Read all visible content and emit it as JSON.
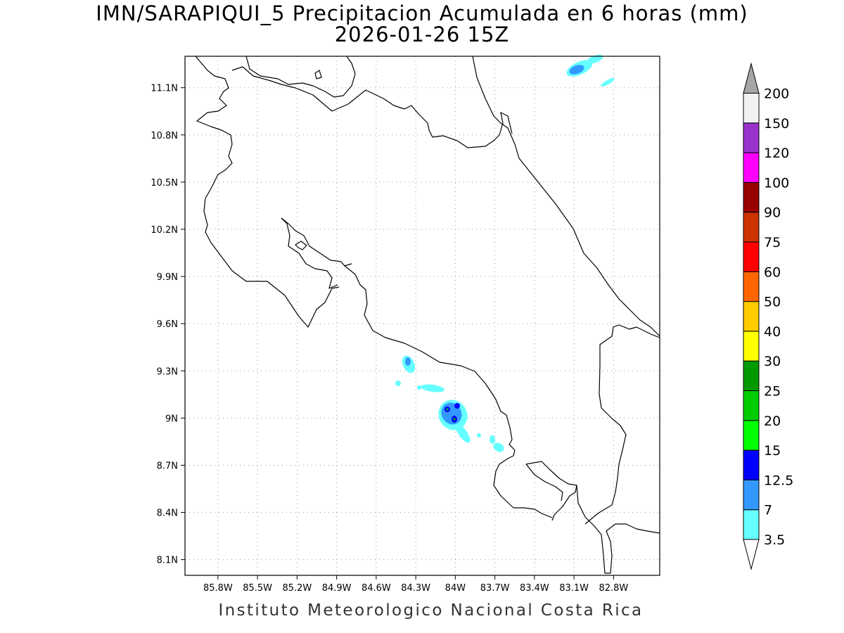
{
  "title_line1": "IMN/SARAPIQUI_5 Precipitacion Acumulada en 6 horas (mm)",
  "title_line2": "2026-01-26 15Z",
  "footer": "Instituto Meteorologico Nacional Costa Rica",
  "map": {
    "lon_range": [
      -86.05,
      -82.45
    ],
    "lat_range": [
      8.0,
      11.3
    ],
    "grid_lines": "dotted",
    "lon_ticks": [
      {
        "value": -85.8,
        "label": "85.8W"
      },
      {
        "value": -85.5,
        "label": "85.5W"
      },
      {
        "value": -85.2,
        "label": "85.2W"
      },
      {
        "value": -84.9,
        "label": "84.9W"
      },
      {
        "value": -84.6,
        "label": "84.6W"
      },
      {
        "value": -84.3,
        "label": "84.3W"
      },
      {
        "value": -84.0,
        "label": "84W"
      },
      {
        "value": -83.7,
        "label": "83.7W"
      },
      {
        "value": -83.4,
        "label": "83.4W"
      },
      {
        "value": -83.1,
        "label": "83.1W"
      },
      {
        "value": -82.8,
        "label": "82.8W"
      }
    ],
    "lat_ticks": [
      {
        "value": 11.1,
        "label": "11.1N"
      },
      {
        "value": 10.8,
        "label": "10.8N"
      },
      {
        "value": 10.5,
        "label": "10.5N"
      },
      {
        "value": 10.2,
        "label": "10.2N"
      },
      {
        "value": 9.9,
        "label": "9.9N"
      },
      {
        "value": 9.6,
        "label": "9.6N"
      },
      {
        "value": 9.3,
        "label": "9.3N"
      },
      {
        "value": 9.0,
        "label": "9N"
      },
      {
        "value": 8.7,
        "label": "8.7N"
      },
      {
        "value": 8.4,
        "label": "8.4N"
      },
      {
        "value": 8.1,
        "label": "8.1N"
      }
    ]
  },
  "colorbar": {
    "levels": [
      "3.5",
      "7",
      "12.5",
      "15",
      "20",
      "25",
      "30",
      "40",
      "50",
      "60",
      "75",
      "90",
      "100",
      "120",
      "150",
      "200"
    ],
    "colors": [
      "#66ffff",
      "#3399ff",
      "#0000ff",
      "#00ff00",
      "#00cc00",
      "#009900",
      "#ffff00",
      "#ffcc00",
      "#ff6600",
      "#ff0000",
      "#cc3300",
      "#990000",
      "#ff00ff",
      "#9933cc",
      "#f2f2f2",
      "#a6a6a6"
    ],
    "colors_note": "colors[0]..colors[14] are the boxes from bottom to top; colors[15] is the top arrow; bottom arrow is white"
  },
  "precip_cells": [
    {
      "lon": -84.34,
      "lat": 9.36,
      "level": "7"
    },
    {
      "lon": -84.06,
      "lat": 9.04,
      "level": "12.5"
    },
    {
      "lon": -84.0,
      "lat": 9.09,
      "level": "12.5"
    },
    {
      "lon": -84.0,
      "lat": 8.98,
      "level": "12.5"
    },
    {
      "lon": -83.08,
      "lat": 11.19,
      "level": "7"
    },
    {
      "lon": -84.23,
      "lat": 9.23,
      "level": "3.5"
    },
    {
      "lon": -84.09,
      "lat": 9.18,
      "level": "3.5"
    },
    {
      "lon": -83.72,
      "lat": 8.82,
      "level": "3.5"
    },
    {
      "lon": -83.94,
      "lat": 8.88,
      "level": "3.5"
    },
    {
      "lon": -84.4,
      "lat": 9.22,
      "level": "3.5"
    },
    {
      "lon": -82.91,
      "lat": 11.07,
      "level": "3.5"
    }
  ]
}
